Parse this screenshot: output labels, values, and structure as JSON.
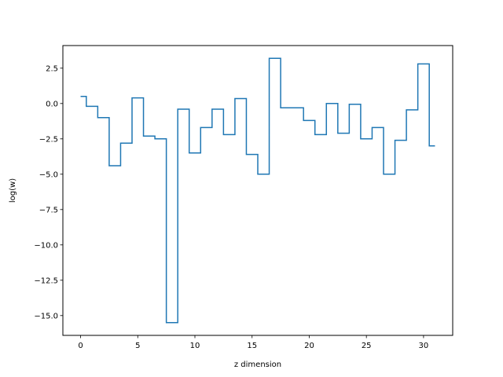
{
  "chart_data": {
    "type": "line",
    "drawstyle": "steps-mid",
    "title": "",
    "xlabel": "z dimension",
    "ylabel": "log(w)",
    "xlim": [
      -1.55,
      32.55
    ],
    "ylim": [
      -16.4,
      4.1
    ],
    "xticks": [
      0,
      5,
      10,
      15,
      20,
      25,
      30
    ],
    "xtick_labels": [
      "0",
      "5",
      "10",
      "15",
      "20",
      "25",
      "30"
    ],
    "yticks": [
      2.5,
      0.0,
      -2.5,
      -5.0,
      -7.5,
      -10.0,
      -12.5,
      -15.0
    ],
    "ytick_labels": [
      "2.5",
      "0.0",
      "−2.5",
      "−5.0",
      "−7.5",
      "−10.0",
      "−12.5",
      "−15.0"
    ],
    "grid": false,
    "legend": "none",
    "color": "#1f77b4",
    "series": [
      {
        "x": [
          0,
          1,
          2,
          3,
          4,
          5,
          6,
          7,
          8,
          9,
          10,
          11,
          12,
          13,
          14,
          15,
          16,
          17,
          18,
          19,
          20,
          21,
          22,
          23,
          24,
          25,
          26,
          27,
          28,
          29,
          30,
          31
        ],
        "values": [
          0.5,
          -0.2,
          -1.0,
          -4.4,
          -2.8,
          0.4,
          -2.3,
          -2.5,
          -15.5,
          -0.4,
          -3.5,
          -1.7,
          -0.4,
          -2.2,
          0.35,
          -3.6,
          -5.0,
          3.2,
          -0.3,
          -0.3,
          -1.2,
          -2.2,
          0.0,
          -2.1,
          -0.05,
          -2.5,
          -1.7,
          -5.0,
          -2.6,
          -0.45,
          2.8,
          -3.0
        ]
      }
    ]
  }
}
